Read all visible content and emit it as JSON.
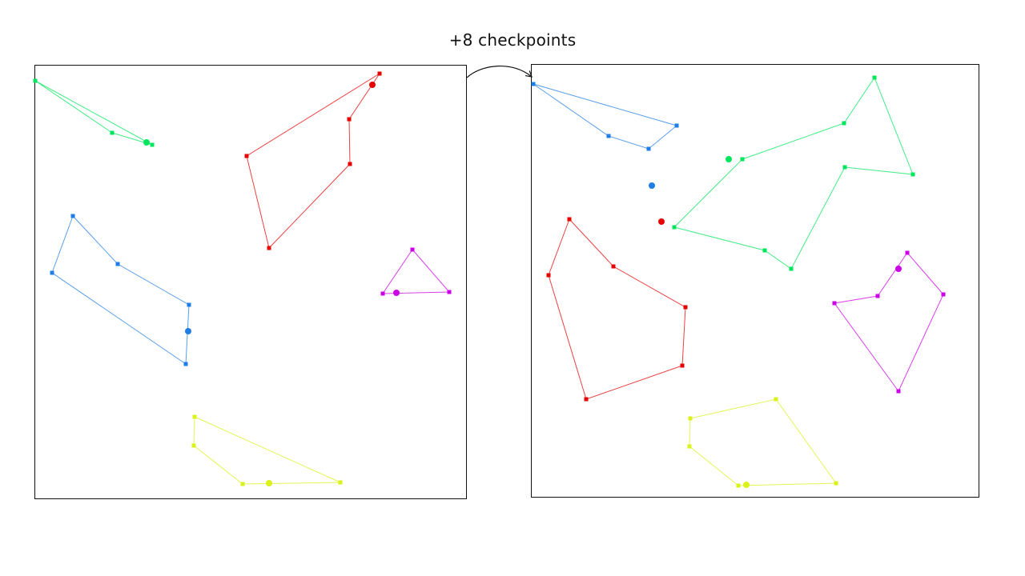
{
  "caption": "+8 checkpoints",
  "panels": [
    {
      "id": "before",
      "tracks": [
        {
          "color": "#00e65c",
          "checkpoints": [
            [
              44,
              101
            ],
            [
              140,
              166
            ],
            [
              190,
              181
            ]
          ],
          "car": [
            183,
            178
          ]
        },
        {
          "color": "#e60000",
          "checkpoints": [
            [
              474,
              92
            ],
            [
              436,
              149
            ],
            [
              437,
              205
            ],
            [
              336,
              310
            ],
            [
              308,
              195
            ]
          ],
          "car": [
            465,
            106
          ]
        },
        {
          "color": "#1f7de6",
          "checkpoints": [
            [
              91,
              270
            ],
            [
              147,
              330
            ],
            [
              236,
              381
            ],
            [
              232,
              455
            ],
            [
              65,
              341
            ]
          ],
          "car": [
            235,
            414
          ]
        },
        {
          "color": "#cc00e6",
          "checkpoints": [
            [
              515,
              312
            ],
            [
              561,
              365
            ],
            [
              478,
              367
            ]
          ],
          "car": [
            495,
            366
          ]
        },
        {
          "color": "#d9f21a",
          "checkpoints": [
            [
              243,
              521
            ],
            [
              425,
              603
            ],
            [
              303,
              605
            ],
            [
              242,
              557
            ]
          ],
          "car": [
            336,
            604
          ]
        }
      ]
    },
    {
      "id": "after",
      "tracks": [
        {
          "color": "#1f7de6",
          "checkpoints": [
            [
              666,
              105
            ],
            [
              845,
              157
            ],
            [
              810,
              186
            ],
            [
              760,
              170
            ]
          ],
          "car": [
            814,
            232
          ]
        },
        {
          "color": "#00e65c",
          "checkpoints": [
            [
              927,
              199
            ],
            [
              1054,
              154
            ],
            [
              1092,
              97
            ],
            [
              1140,
              218
            ],
            [
              1055,
              209
            ],
            [
              988,
              336
            ],
            [
              955,
              313
            ],
            [
              842,
              284
            ]
          ],
          "car": [
            910,
            199
          ]
        },
        {
          "color": "#e60000",
          "checkpoints": [
            [
              711,
              274
            ],
            [
              766,
              333
            ],
            [
              856,
              384
            ],
            [
              852,
              457
            ],
            [
              732,
              499
            ],
            [
              685,
              344
            ]
          ],
          "car": [
            826,
            277
          ]
        },
        {
          "color": "#cc00e6",
          "checkpoints": [
            [
              1133,
              316
            ],
            [
              1178,
              368
            ],
            [
              1122,
              489
            ],
            [
              1042,
              379
            ],
            [
              1096,
              370
            ]
          ],
          "car": [
            1122,
            336
          ]
        },
        {
          "color": "#d9f21a",
          "checkpoints": [
            [
              969,
              499
            ],
            [
              1044,
              604
            ],
            [
              922,
              607
            ],
            [
              861,
              558
            ],
            [
              862,
              523
            ]
          ],
          "car": [
            932,
            606
          ]
        }
      ]
    }
  ]
}
